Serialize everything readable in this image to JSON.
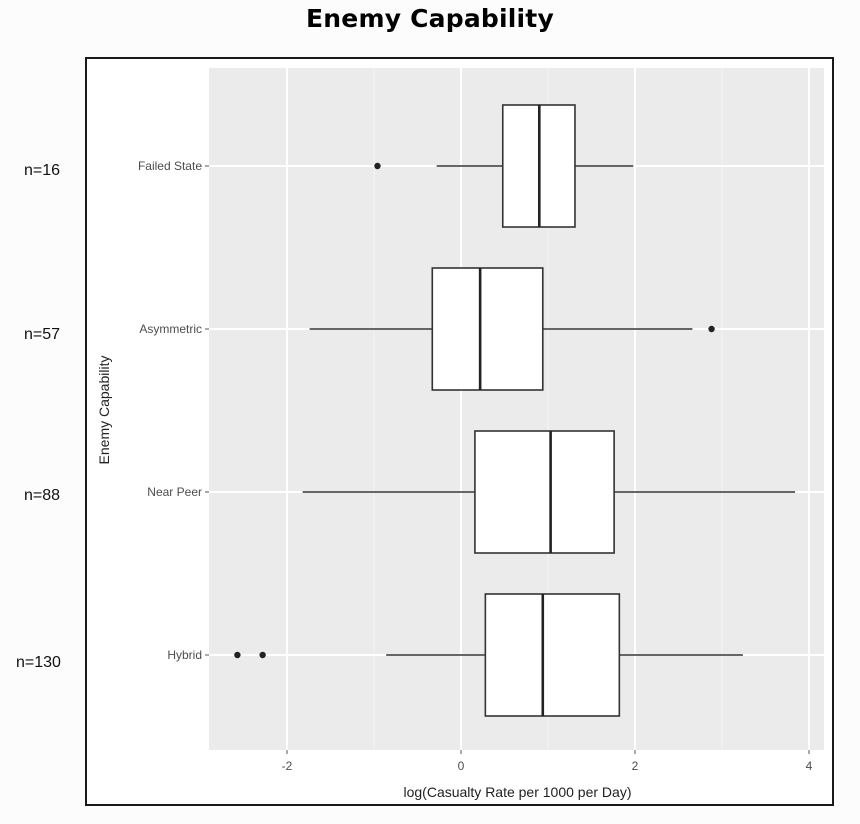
{
  "figure_title": "Enemy Capability",
  "group_counts": [
    "n=16",
    "n=57",
    "n=88",
    "n=130"
  ],
  "chart_data": {
    "type": "boxplot",
    "orientation": "horizontal",
    "title": "",
    "xlabel": "log(Casualty Rate per 1000 per Day)",
    "ylabel": "Enemy Capability",
    "xlim": [
      -2.9,
      4.0
    ],
    "xticks": [
      -2,
      0,
      2,
      4
    ],
    "grid": true,
    "categories": [
      "Failed State",
      "Asymmetric",
      "Near Peer",
      "Hybrid"
    ],
    "boxes": [
      {
        "category": "Failed State",
        "whisker_low": -0.28,
        "q1": 0.48,
        "median": 0.9,
        "q3": 1.31,
        "whisker_high": 1.98,
        "outliers": [
          -0.96
        ]
      },
      {
        "category": "Asymmetric",
        "whisker_low": -1.74,
        "q1": -0.33,
        "median": 0.22,
        "q3": 0.94,
        "whisker_high": 2.66,
        "outliers": [
          2.88
        ]
      },
      {
        "category": "Near Peer",
        "whisker_low": -1.82,
        "q1": 0.16,
        "median": 1.03,
        "q3": 1.76,
        "whisker_high": 3.84,
        "outliers": []
      },
      {
        "category": "Hybrid",
        "whisker_low": -0.86,
        "q1": 0.28,
        "median": 0.94,
        "q3": 1.82,
        "whisker_high": 3.24,
        "outliers": [
          -2.57,
          -2.28
        ]
      }
    ]
  }
}
